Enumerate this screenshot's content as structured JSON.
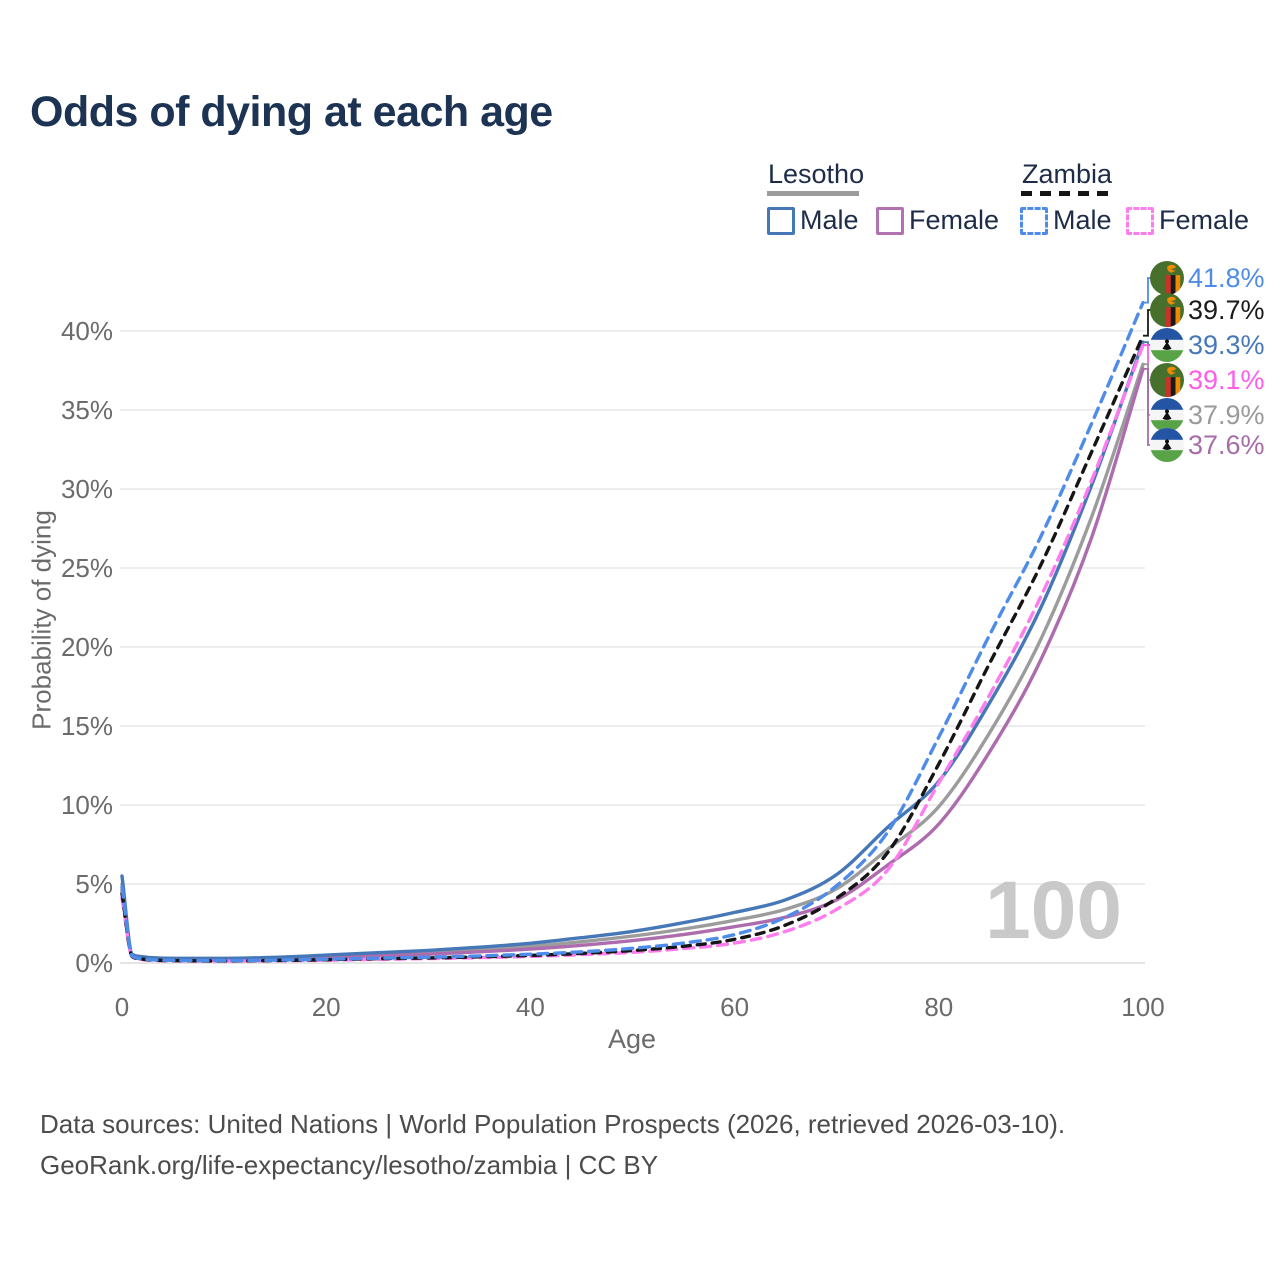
{
  "title": "Odds of dying at each age",
  "legend": {
    "groups": [
      {
        "id": "lesotho",
        "label": "Lesotho",
        "line_style": "solid",
        "line_color": "#9c9c9c",
        "items": [
          {
            "id": "lesotho-male",
            "label": "Male",
            "color": "#4678b8",
            "dashed": false
          },
          {
            "id": "lesotho-female",
            "label": "Female",
            "color": "#b172b1",
            "dashed": false
          }
        ]
      },
      {
        "id": "zambia",
        "label": "Zambia",
        "line_style": "dashed",
        "line_color": "#151515",
        "items": [
          {
            "id": "zambia-male",
            "label": "Male",
            "color": "#4f8ce9",
            "dashed": true
          },
          {
            "id": "zambia-female",
            "label": "Female",
            "color": "#ff7cee",
            "dashed": true
          }
        ]
      }
    ]
  },
  "chart_data": {
    "type": "line",
    "title": "Odds of dying at each age",
    "xlabel": "Age",
    "ylabel": "Probability of dying",
    "unit": "%",
    "xlim": [
      0,
      100
    ],
    "ylim": [
      0,
      44
    ],
    "xticks": [
      0,
      20,
      40,
      60,
      80,
      100
    ],
    "yticks": [
      0,
      5,
      10,
      15,
      20,
      25,
      30,
      35,
      40
    ],
    "ytick_suffix": "%",
    "grid": "horizontal",
    "watermark": "100",
    "x": [
      0,
      1,
      2,
      5,
      10,
      15,
      20,
      25,
      30,
      35,
      40,
      45,
      50,
      55,
      60,
      65,
      70,
      75,
      80,
      85,
      90,
      95,
      100
    ],
    "series": [
      {
        "id": "lesotho-combined",
        "name": "Lesotho",
        "country": "Lesotho",
        "sex": "Both",
        "color": "#9c9c9c",
        "dash": false,
        "values": [
          5.0,
          0.5,
          0.37,
          0.27,
          0.27,
          0.32,
          0.42,
          0.55,
          0.68,
          0.85,
          1.05,
          1.35,
          1.7,
          2.15,
          2.7,
          3.4,
          4.7,
          7.2,
          9.9,
          14.6,
          20.5,
          28.3,
          37.9
        ]
      },
      {
        "id": "lesotho-female",
        "name": "Lesotho Female",
        "country": "Lesotho",
        "sex": "Female",
        "color": "#ad6cad",
        "dash": false,
        "values": [
          4.6,
          0.46,
          0.34,
          0.24,
          0.24,
          0.28,
          0.35,
          0.46,
          0.56,
          0.71,
          0.88,
          1.12,
          1.42,
          1.8,
          2.3,
          2.9,
          4.0,
          6.2,
          8.8,
          13.4,
          19.2,
          27.0,
          37.6
        ]
      },
      {
        "id": "lesotho-male",
        "name": "Lesotho Male",
        "country": "Lesotho",
        "sex": "Male",
        "color": "#4678b8",
        "dash": false,
        "values": [
          5.5,
          0.55,
          0.4,
          0.3,
          0.3,
          0.36,
          0.5,
          0.65,
          0.8,
          1.0,
          1.25,
          1.6,
          2.0,
          2.55,
          3.2,
          4.0,
          5.6,
          8.6,
          11.5,
          16.5,
          22.5,
          30.3,
          39.3
        ]
      },
      {
        "id": "zambia-female",
        "name": "Zambia Female",
        "country": "Zambia",
        "sex": "Female",
        "color": "#ff7cee",
        "dash": true,
        "values": [
          4.1,
          0.4,
          0.22,
          0.14,
          0.12,
          0.14,
          0.18,
          0.23,
          0.28,
          0.34,
          0.42,
          0.53,
          0.68,
          0.91,
          1.26,
          2.0,
          3.4,
          5.9,
          11.4,
          17.0,
          23.2,
          30.6,
          39.1
        ]
      },
      {
        "id": "zambia-combined",
        "name": "Zambia",
        "country": "Zambia",
        "sex": "Both",
        "color": "#151515",
        "dash": true,
        "values": [
          4.4,
          0.42,
          0.24,
          0.15,
          0.13,
          0.16,
          0.21,
          0.27,
          0.32,
          0.39,
          0.48,
          0.61,
          0.79,
          1.06,
          1.5,
          2.4,
          4.1,
          7.0,
          12.6,
          19.0,
          25.2,
          32.4,
          39.7
        ]
      },
      {
        "id": "zambia-male",
        "name": "Zambia Male",
        "country": "Zambia",
        "sex": "Male",
        "color": "#4f8ce9",
        "dash": true,
        "values": [
          4.8,
          0.45,
          0.26,
          0.17,
          0.15,
          0.18,
          0.24,
          0.3,
          0.37,
          0.45,
          0.56,
          0.71,
          0.93,
          1.26,
          1.8,
          2.9,
          4.9,
          8.3,
          14.3,
          20.8,
          27.0,
          34.2,
          41.8
        ]
      }
    ]
  },
  "end_labels": [
    {
      "value": "41.8%",
      "series": "zambia-male",
      "flag": "zambia",
      "color": "#4f8ce9",
      "end_pct": 41.8
    },
    {
      "value": "39.7%",
      "series": "zambia-combined",
      "flag": "zambia",
      "color": "#1a1a1a",
      "end_pct": 39.7
    },
    {
      "value": "39.3%",
      "series": "lesotho-male",
      "flag": "lesotho",
      "color": "#4678b8",
      "end_pct": 39.3
    },
    {
      "value": "39.1%",
      "series": "zambia-female",
      "flag": "zambia",
      "color": "#ff5ce8",
      "end_pct": 39.1
    },
    {
      "value": "37.9%",
      "series": "lesotho-combined",
      "flag": "lesotho",
      "color": "#9a9a9a",
      "end_pct": 37.9
    },
    {
      "value": "37.6%",
      "series": "lesotho-female",
      "flag": "lesotho",
      "color": "#a56ca8",
      "end_pct": 37.6
    }
  ],
  "flags": {
    "zambia": {
      "green": "#47702d",
      "eagle": "#ef8b00",
      "red": "#cf3028",
      "black": "#1a1a1a",
      "orange": "#ef8b00"
    },
    "lesotho": {
      "blue": "#2355a4",
      "white": "#f5f5f5",
      "green": "#58a345",
      "hat": "#111111"
    }
  },
  "footer": {
    "line1": "Data sources: United Nations | World Population Prospects (2026, retrieved 2026-03-10).",
    "line2": "GeoRank.org/life-expectancy/lesotho/zambia | CC BY"
  }
}
